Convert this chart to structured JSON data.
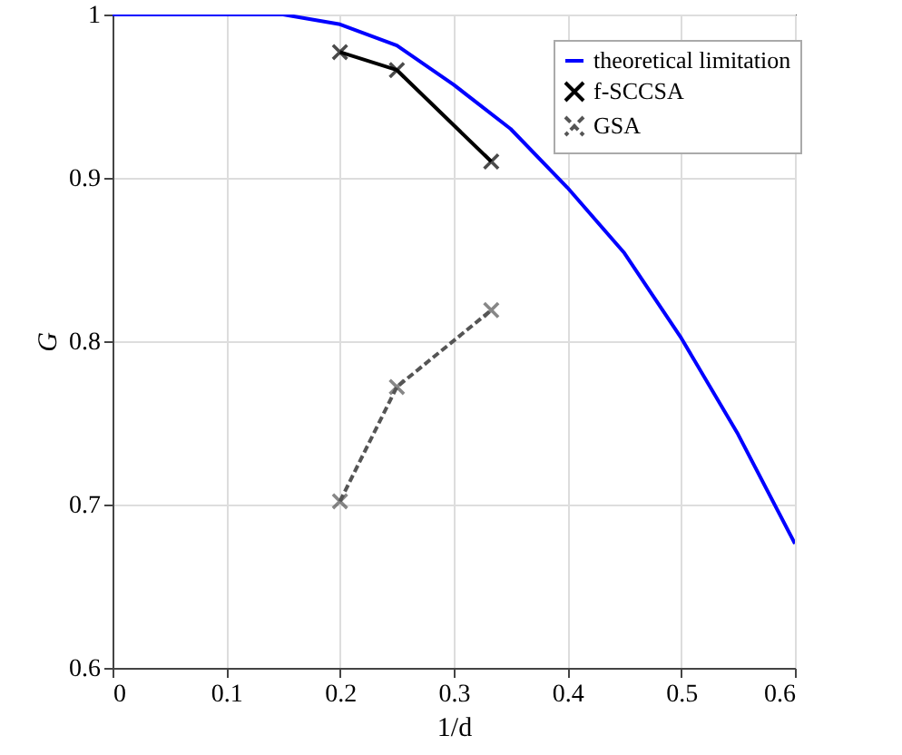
{
  "chart_data": {
    "type": "line",
    "xlabel": "1/d",
    "ylabel": "G",
    "xlim": [
      0,
      0.6
    ],
    "ylim": [
      0.6,
      1
    ],
    "xticks": [
      0,
      0.1,
      0.2,
      0.3,
      0.4,
      0.5,
      0.6
    ],
    "yticks": [
      0.6,
      0.7,
      0.8,
      0.9,
      1
    ],
    "grid": true,
    "legend": "top right",
    "series": [
      {
        "name": "theoretical limitation",
        "color": "#0000ff",
        "marker": "none",
        "line_style": "solid",
        "x": [
          0,
          0.05,
          0.1,
          0.15,
          0.2,
          0.25,
          0.3,
          0.35,
          0.4,
          0.45,
          0.5,
          0.55,
          0.6
        ],
        "values": [
          1,
          1,
          1,
          1,
          0.994,
          0.981,
          0.957,
          0.93,
          0.894,
          0.854,
          0.802,
          0.743,
          0.676
        ]
      },
      {
        "name": "f-SCCSA",
        "color": "#000000",
        "marker": "cross",
        "line_style": "solid",
        "x": [
          0.2,
          0.25,
          0.333
        ],
        "values": [
          0.977,
          0.966,
          0.91
        ]
      },
      {
        "name": "GSA",
        "color": "#555555",
        "marker": "cross",
        "line_style": "dashed",
        "x": [
          0.2,
          0.25,
          0.333
        ],
        "values": [
          0.702,
          0.772,
          0.819
        ]
      }
    ]
  }
}
